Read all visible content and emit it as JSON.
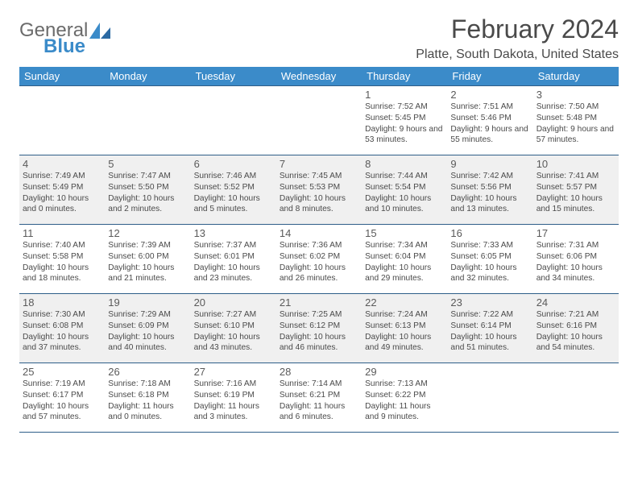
{
  "logo": {
    "text1": "General",
    "text2": "Blue"
  },
  "title": {
    "month": "February 2024",
    "location": "Platte, South Dakota, United States"
  },
  "colors": {
    "headerBg": "#3b8bc9",
    "headerText": "#ffffff",
    "rowBorder": "#2e5e88",
    "altRow": "#f0f0f0",
    "textDark": "#4a4a4a",
    "logoGray": "#6b6b6b",
    "logoBlue": "#3b8bc9"
  },
  "weekdays": [
    "Sunday",
    "Monday",
    "Tuesday",
    "Wednesday",
    "Thursday",
    "Friday",
    "Saturday"
  ],
  "weeks": [
    [
      null,
      null,
      null,
      null,
      {
        "n": "1",
        "sr": "7:52 AM",
        "ss": "5:45 PM",
        "dl": "9 hours and 53 minutes."
      },
      {
        "n": "2",
        "sr": "7:51 AM",
        "ss": "5:46 PM",
        "dl": "9 hours and 55 minutes."
      },
      {
        "n": "3",
        "sr": "7:50 AM",
        "ss": "5:48 PM",
        "dl": "9 hours and 57 minutes."
      }
    ],
    [
      {
        "n": "4",
        "sr": "7:49 AM",
        "ss": "5:49 PM",
        "dl": "10 hours and 0 minutes."
      },
      {
        "n": "5",
        "sr": "7:47 AM",
        "ss": "5:50 PM",
        "dl": "10 hours and 2 minutes."
      },
      {
        "n": "6",
        "sr": "7:46 AM",
        "ss": "5:52 PM",
        "dl": "10 hours and 5 minutes."
      },
      {
        "n": "7",
        "sr": "7:45 AM",
        "ss": "5:53 PM",
        "dl": "10 hours and 8 minutes."
      },
      {
        "n": "8",
        "sr": "7:44 AM",
        "ss": "5:54 PM",
        "dl": "10 hours and 10 minutes."
      },
      {
        "n": "9",
        "sr": "7:42 AM",
        "ss": "5:56 PM",
        "dl": "10 hours and 13 minutes."
      },
      {
        "n": "10",
        "sr": "7:41 AM",
        "ss": "5:57 PM",
        "dl": "10 hours and 15 minutes."
      }
    ],
    [
      {
        "n": "11",
        "sr": "7:40 AM",
        "ss": "5:58 PM",
        "dl": "10 hours and 18 minutes."
      },
      {
        "n": "12",
        "sr": "7:39 AM",
        "ss": "6:00 PM",
        "dl": "10 hours and 21 minutes."
      },
      {
        "n": "13",
        "sr": "7:37 AM",
        "ss": "6:01 PM",
        "dl": "10 hours and 23 minutes."
      },
      {
        "n": "14",
        "sr": "7:36 AM",
        "ss": "6:02 PM",
        "dl": "10 hours and 26 minutes."
      },
      {
        "n": "15",
        "sr": "7:34 AM",
        "ss": "6:04 PM",
        "dl": "10 hours and 29 minutes."
      },
      {
        "n": "16",
        "sr": "7:33 AM",
        "ss": "6:05 PM",
        "dl": "10 hours and 32 minutes."
      },
      {
        "n": "17",
        "sr": "7:31 AM",
        "ss": "6:06 PM",
        "dl": "10 hours and 34 minutes."
      }
    ],
    [
      {
        "n": "18",
        "sr": "7:30 AM",
        "ss": "6:08 PM",
        "dl": "10 hours and 37 minutes."
      },
      {
        "n": "19",
        "sr": "7:29 AM",
        "ss": "6:09 PM",
        "dl": "10 hours and 40 minutes."
      },
      {
        "n": "20",
        "sr": "7:27 AM",
        "ss": "6:10 PM",
        "dl": "10 hours and 43 minutes."
      },
      {
        "n": "21",
        "sr": "7:25 AM",
        "ss": "6:12 PM",
        "dl": "10 hours and 46 minutes."
      },
      {
        "n": "22",
        "sr": "7:24 AM",
        "ss": "6:13 PM",
        "dl": "10 hours and 49 minutes."
      },
      {
        "n": "23",
        "sr": "7:22 AM",
        "ss": "6:14 PM",
        "dl": "10 hours and 51 minutes."
      },
      {
        "n": "24",
        "sr": "7:21 AM",
        "ss": "6:16 PM",
        "dl": "10 hours and 54 minutes."
      }
    ],
    [
      {
        "n": "25",
        "sr": "7:19 AM",
        "ss": "6:17 PM",
        "dl": "10 hours and 57 minutes."
      },
      {
        "n": "26",
        "sr": "7:18 AM",
        "ss": "6:18 PM",
        "dl": "11 hours and 0 minutes."
      },
      {
        "n": "27",
        "sr": "7:16 AM",
        "ss": "6:19 PM",
        "dl": "11 hours and 3 minutes."
      },
      {
        "n": "28",
        "sr": "7:14 AM",
        "ss": "6:21 PM",
        "dl": "11 hours and 6 minutes."
      },
      {
        "n": "29",
        "sr": "7:13 AM",
        "ss": "6:22 PM",
        "dl": "11 hours and 9 minutes."
      },
      null,
      null
    ]
  ],
  "labels": {
    "sunrise": "Sunrise:",
    "sunset": "Sunset:",
    "daylight": "Daylight:"
  }
}
